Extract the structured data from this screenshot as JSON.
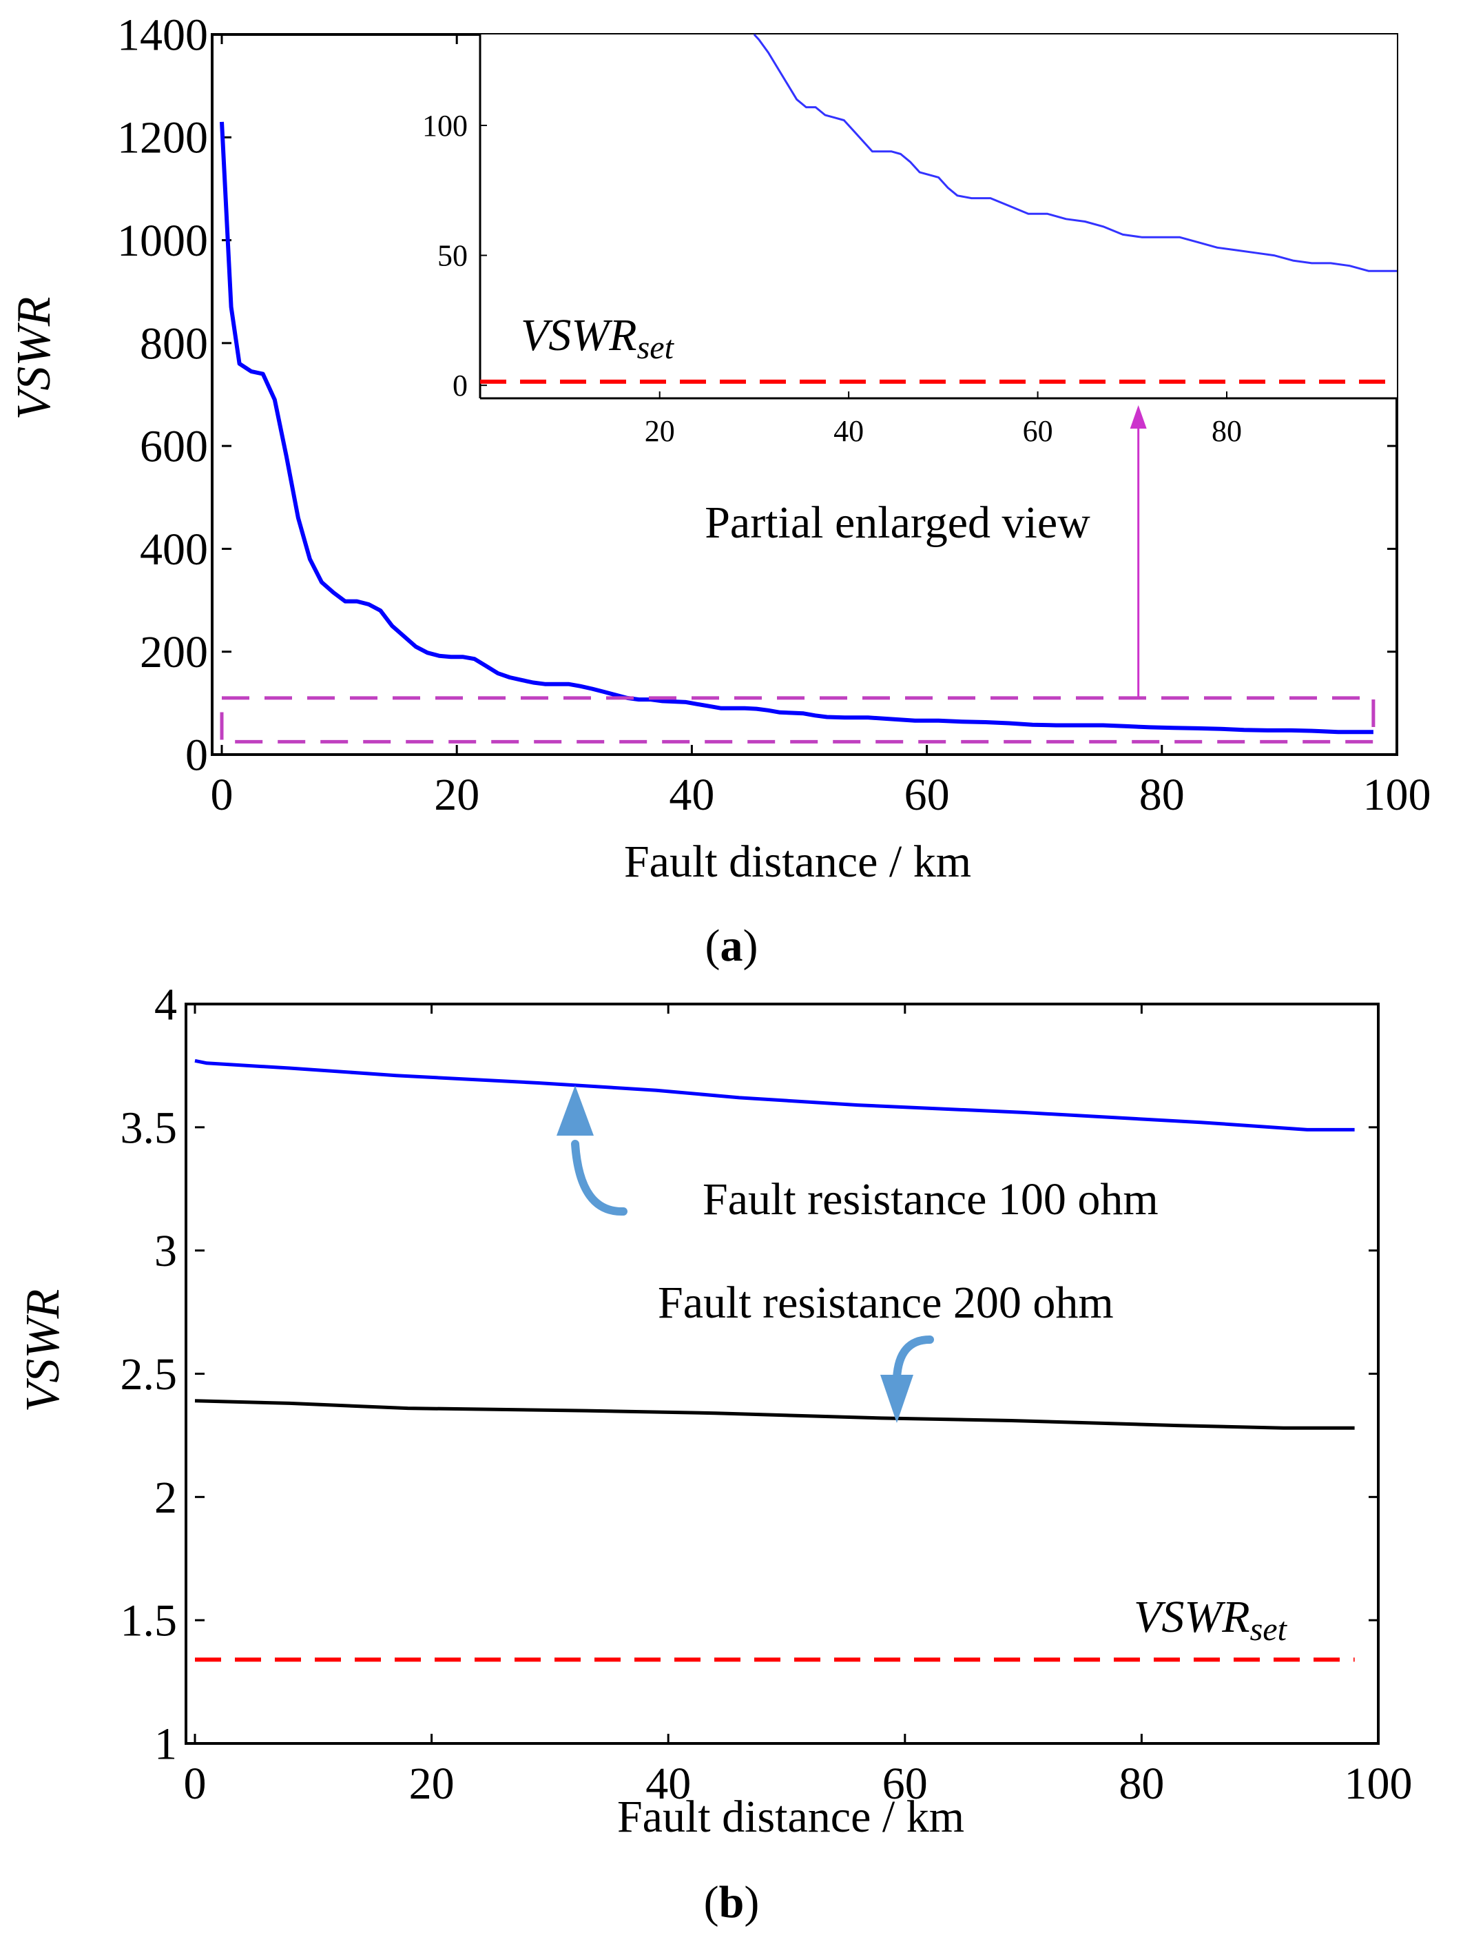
{
  "chart_data": [
    {
      "panel": "a",
      "type": "line",
      "caption": "(a)",
      "caption_letter": "a",
      "xlabel": "Fault distance / km",
      "ylabel": "VSWR",
      "xlim": [
        0,
        100
      ],
      "ylim": [
        0,
        1400
      ],
      "x_ticks": [
        0,
        20,
        40,
        60,
        80,
        100
      ],
      "y_ticks": [
        0,
        200,
        400,
        600,
        800,
        1000,
        1200,
        1400
      ],
      "series": [
        {
          "name": "VSWR",
          "color": "#0000ff",
          "x": [
            0,
            0.8,
            1.5,
            2.5,
            3.5,
            4.5,
            5.5,
            6.5,
            7.5,
            8.5,
            9.5,
            10.5,
            11.5,
            12.5,
            13.5,
            14.5,
            15.5,
            16.5,
            17.5,
            18.5,
            19.5,
            20.5,
            21.5,
            22.5,
            23.5,
            24.5,
            25.5,
            26.5,
            27.5,
            28.5,
            29.5,
            30.5,
            31.5,
            32.5,
            33.5,
            34.5,
            35.5,
            36.5,
            37.5,
            38.5,
            39.5,
            40.5,
            41.5,
            42.5,
            43.5,
            44.5,
            45.5,
            46.5,
            47.5,
            48.5,
            49.5,
            50.5,
            51.5,
            53,
            55,
            57,
            59,
            61,
            63,
            65,
            67,
            69,
            71,
            73,
            75,
            77,
            79,
            81,
            83,
            85,
            87,
            89,
            91,
            93,
            95,
            98
          ],
          "values": [
            1230,
            870,
            760,
            745,
            740,
            690,
            580,
            460,
            380,
            335,
            315,
            298,
            298,
            292,
            280,
            250,
            230,
            210,
            198,
            192,
            190,
            190,
            186,
            172,
            158,
            150,
            145,
            140,
            137,
            137,
            137,
            133,
            128,
            122,
            116,
            110,
            107,
            107,
            104,
            103,
            102,
            98,
            94,
            90,
            90,
            90,
            89,
            86,
            82,
            81,
            80,
            76,
            73,
            72,
            72,
            69,
            66,
            66,
            64,
            63,
            61,
            58,
            57,
            57,
            57,
            55,
            53,
            52,
            51,
            50,
            48,
            47,
            47,
            46,
            44,
            44
          ]
        }
      ],
      "highlight_box": {
        "x_range": [
          0,
          98
        ],
        "y_range": [
          25,
          110
        ],
        "color": "#c040c0"
      },
      "inset": {
        "label": "Partial enlarged view",
        "xlim": [
          1,
          98
        ],
        "ylim": [
          -5,
          135
        ],
        "x_ticks": [
          20,
          40,
          60,
          80
        ],
        "y_ticks": [
          0,
          50,
          100
        ],
        "threshold_label_main": "VSWR",
        "threshold_label_sub": "set",
        "threshold_value": 1.4,
        "threshold_color": "#ff0000",
        "series_color": "#3333ff",
        "arrow_x": 78,
        "arrow_color": "#cc33cc"
      }
    },
    {
      "panel": "b",
      "type": "line",
      "caption": "(b)",
      "caption_letter": "b",
      "xlabel": "Fault distance / km",
      "ylabel": "VSWR",
      "xlim": [
        0,
        100
      ],
      "ylim": [
        1,
        4
      ],
      "x_ticks": [
        0,
        20,
        40,
        60,
        80,
        100
      ],
      "y_ticks": [
        1,
        1.5,
        2,
        2.5,
        3,
        3.5,
        4
      ],
      "series": [
        {
          "name": "Fault resistance 100 ohm",
          "color": "#0000ff",
          "x": [
            0,
            1,
            8,
            17,
            29,
            39,
            46,
            56,
            70,
            85,
            94,
            98
          ],
          "values": [
            3.77,
            3.76,
            3.74,
            3.71,
            3.68,
            3.65,
            3.62,
            3.59,
            3.56,
            3.52,
            3.49,
            3.49
          ]
        },
        {
          "name": "Fault resistance 200 ohm",
          "color": "#000000",
          "x": [
            0,
            8,
            18,
            33,
            44,
            58,
            69,
            83,
            92,
            98
          ],
          "values": [
            2.39,
            2.38,
            2.36,
            2.35,
            2.34,
            2.32,
            2.31,
            2.29,
            2.28,
            2.28
          ]
        }
      ],
      "threshold": {
        "label_main": "VSWR",
        "label_sub": "set",
        "value": 1.34,
        "color": "#ff0000"
      },
      "annotations": [
        {
          "text": "Fault resistance 100 ohm",
          "points_to_x": 32.5,
          "points_to_y": 3.68
        },
        {
          "text": "Fault resistance 200 ohm",
          "points_to_x": 60,
          "points_to_y": 2.32
        }
      ],
      "arrow_color": "#5b9bd5"
    }
  ]
}
